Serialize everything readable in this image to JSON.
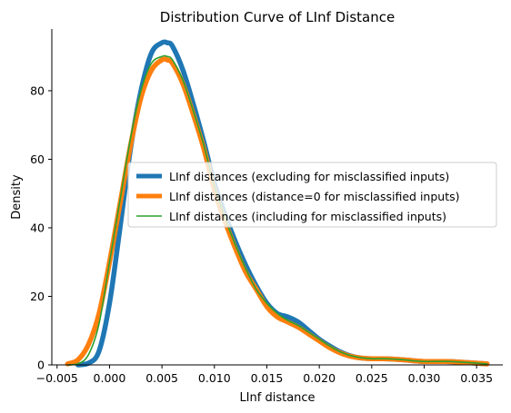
{
  "chart_data": {
    "type": "line",
    "title": "Distribution Curve of LInf Distance",
    "xlabel": "LInf distance",
    "ylabel": "Density",
    "xlim": [
      -0.0055,
      0.0375
    ],
    "ylim": [
      0,
      98
    ],
    "xticks": [
      -0.005,
      0.0,
      0.005,
      0.01,
      0.015,
      0.02,
      0.025,
      0.03,
      0.035
    ],
    "xtick_labels": [
      "−0.005",
      "0.000",
      "0.005",
      "0.010",
      "0.015",
      "0.020",
      "0.025",
      "0.030",
      "0.035"
    ],
    "yticks": [
      0,
      20,
      40,
      60,
      80
    ],
    "ytick_labels": [
      "0",
      "20",
      "40",
      "60",
      "80"
    ],
    "grid": false,
    "legend_position": "center-right",
    "series": [
      {
        "name": "LInf distances (excluding for misclassified inputs)",
        "color": "#1f77b4",
        "line_width": "thick",
        "x": [
          -0.003,
          -0.002,
          -0.001,
          0.0,
          0.001,
          0.002,
          0.003,
          0.004,
          0.005,
          0.0055,
          0.006,
          0.007,
          0.008,
          0.009,
          0.01,
          0.011,
          0.012,
          0.013,
          0.014,
          0.015,
          0.016,
          0.017,
          0.018,
          0.019,
          0.02,
          0.021,
          0.022,
          0.023,
          0.024,
          0.025,
          0.026,
          0.027,
          0.028,
          0.029,
          0.03,
          0.031,
          0.032,
          0.033,
          0.034,
          0.035,
          0.036
        ],
        "values": [
          0,
          0.5,
          4,
          18,
          40,
          63,
          80,
          91,
          94,
          94,
          93,
          86,
          76,
          65,
          53,
          44,
          36,
          29,
          23,
          18,
          15,
          14,
          12.5,
          10,
          7.5,
          5.5,
          3.8,
          2.6,
          2.0,
          1.8,
          1.8,
          1.7,
          1.5,
          1.2,
          1.0,
          1.0,
          1.0,
          0.9,
          0.7,
          0.5,
          0.3
        ]
      },
      {
        "name": "LInf distances (distance=0 for misclassified inputs)",
        "color": "#ff7f0e",
        "line_width": "thick",
        "x": [
          -0.004,
          -0.003,
          -0.002,
          -0.001,
          0.0,
          0.001,
          0.002,
          0.003,
          0.004,
          0.005,
          0.0055,
          0.006,
          0.007,
          0.008,
          0.009,
          0.01,
          0.011,
          0.012,
          0.013,
          0.014,
          0.015,
          0.016,
          0.017,
          0.018,
          0.019,
          0.02,
          0.021,
          0.022,
          0.023,
          0.024,
          0.025,
          0.026,
          0.027,
          0.028,
          0.029,
          0.03,
          0.031,
          0.032,
          0.033,
          0.034,
          0.035,
          0.036
        ],
        "values": [
          0.3,
          1.5,
          6,
          15,
          30,
          47,
          64,
          78,
          86,
          89,
          89,
          88,
          82,
          73,
          63,
          51,
          42,
          34,
          27,
          22,
          17,
          14,
          12.5,
          11,
          9,
          7,
          5,
          3.5,
          2.5,
          2.0,
          1.8,
          1.8,
          1.7,
          1.5,
          1.2,
          1.0,
          1.0,
          1.0,
          0.9,
          0.7,
          0.5,
          0.3
        ]
      },
      {
        "name": "LInf distances (including for misclassified inputs)",
        "color": "#2ca02c",
        "line_width": "thin",
        "x": [
          -0.004,
          -0.003,
          -0.002,
          -0.001,
          0.0,
          0.001,
          0.002,
          0.003,
          0.004,
          0.005,
          0.0055,
          0.006,
          0.007,
          0.008,
          0.009,
          0.01,
          0.011,
          0.012,
          0.013,
          0.014,
          0.015,
          0.016,
          0.017,
          0.018,
          0.019,
          0.02,
          0.021,
          0.022,
          0.023,
          0.024,
          0.025,
          0.026,
          0.027,
          0.028,
          0.029,
          0.03,
          0.031,
          0.032,
          0.033,
          0.034,
          0.035,
          0.036
        ],
        "values": [
          0,
          0.3,
          3,
          12,
          30,
          48,
          66,
          80,
          88,
          90,
          90,
          89,
          83,
          74,
          64,
          52,
          43,
          35,
          28,
          22,
          18,
          15,
          13,
          11.5,
          9.5,
          7.5,
          5.5,
          3.8,
          2.7,
          2.1,
          1.8,
          1.8,
          1.7,
          1.5,
          1.2,
          1.0,
          1.0,
          1.0,
          0.9,
          0.7,
          0.5,
          0.3
        ]
      }
    ]
  }
}
